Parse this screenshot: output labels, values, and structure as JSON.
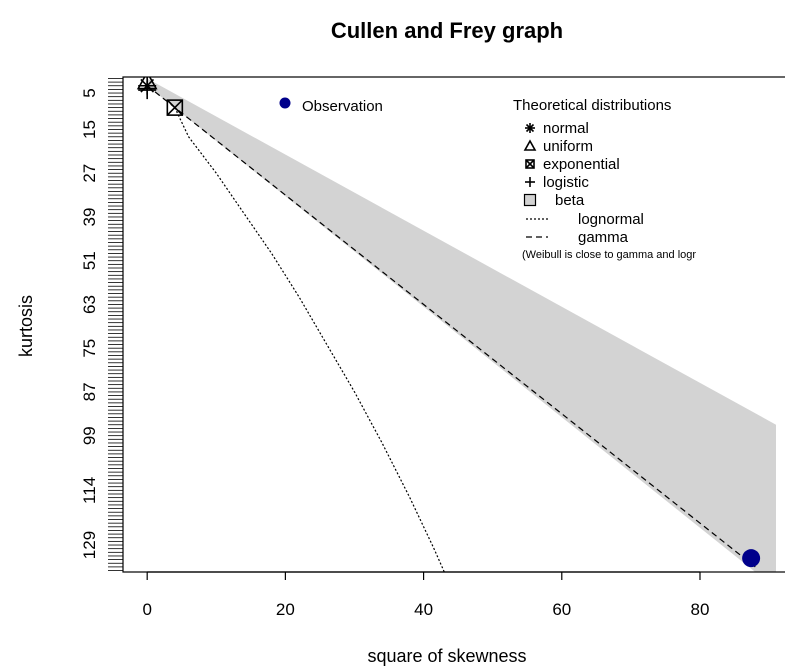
{
  "chart_data": {
    "type": "scatter",
    "title": "Cullen and Frey graph",
    "xlabel": "square of skewness",
    "ylabel": "kurtosis",
    "xlim": [
      -3.5,
      91
    ],
    "ylim": [
      136.4,
      0.6
    ],
    "x_ticks": [
      0,
      20,
      40,
      60,
      80
    ],
    "y_ticks": [
      5,
      15,
      27,
      39,
      51,
      63,
      75,
      87,
      99,
      114,
      129
    ],
    "y_minor_step": 1,
    "observation": {
      "label": "Observation",
      "x": 87.4,
      "y": 132.6,
      "color": "#00008b"
    },
    "theoretical_title": "Theoretical distributions",
    "distributions": [
      {
        "name": "normal",
        "symbol": "asterisk",
        "x": 0,
        "y": 3
      },
      {
        "name": "uniform",
        "symbol": "triangle",
        "x": 0,
        "y": 1.8
      },
      {
        "name": "exponential",
        "symbol": "square-x",
        "x": 4,
        "y": 9
      },
      {
        "name": "logistic",
        "symbol": "plus",
        "x": 0,
        "y": 4.2
      },
      {
        "name": "beta",
        "symbol": "filled-box"
      },
      {
        "name": "lognormal",
        "symbol": "dotted-line"
      },
      {
        "name": "gamma",
        "symbol": "dashed-line"
      }
    ],
    "note": "(Weibull is close to gamma and logr",
    "beta_region_color": "#d3d3d3",
    "beta_region": [
      [
        0,
        1
      ],
      [
        91,
        96
      ],
      [
        91,
        136.4
      ],
      [
        88,
        136.4
      ],
      [
        0,
        3
      ]
    ],
    "gamma_line": [
      [
        0,
        3
      ],
      [
        88,
        135
      ]
    ],
    "lognormal_line": [
      [
        4,
        9
      ],
      [
        6,
        17
      ],
      [
        10,
        27
      ],
      [
        14,
        38
      ],
      [
        18,
        49
      ],
      [
        22,
        61
      ],
      [
        26,
        74
      ],
      [
        30,
        87
      ],
      [
        34,
        101
      ],
      [
        38,
        116
      ],
      [
        41.5,
        130
      ],
      [
        43,
        136.4
      ]
    ],
    "grid": false,
    "legend_placement": "top-right"
  }
}
